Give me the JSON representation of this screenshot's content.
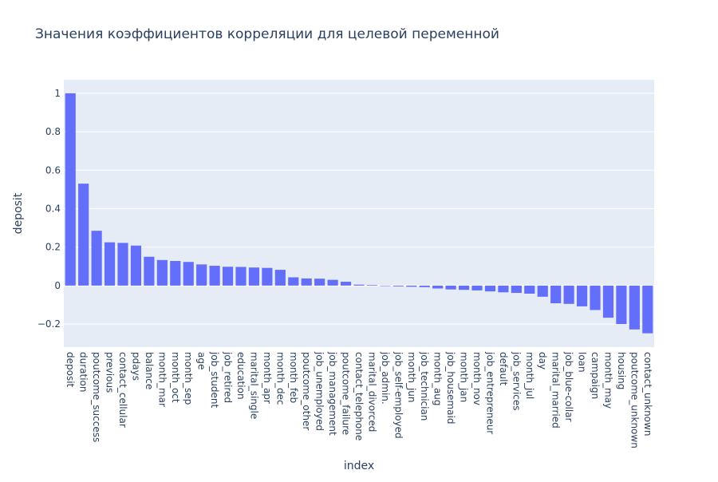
{
  "chart_data": {
    "type": "bar",
    "title": "Значения коэффициентов корреляции для целевой переменной",
    "xlabel": "index",
    "ylabel": "deposit",
    "ylim": [
      -0.32,
      1.07
    ],
    "yticks": [
      -0.2,
      0,
      0.2,
      0.4,
      0.6,
      0.8,
      1
    ],
    "ytick_labels": [
      "−0.2",
      "0",
      "0.2",
      "0.4",
      "0.6",
      "0.8",
      "1"
    ],
    "bar_color": "#636efa",
    "plot_bg": "#e5ecf6",
    "grid": true,
    "categories": [
      "deposit",
      "duration",
      "poutcome_success",
      "previous",
      "contact_cellular",
      "pdays",
      "balance",
      "month_mar",
      "month_oct",
      "month_sep",
      "age",
      "job_student",
      "job_retired",
      "education",
      "marital_single",
      "month_apr",
      "month_dec",
      "month_feb",
      "poutcome_other",
      "job_unemployed",
      "job_management",
      "poutcome_failure",
      "contact_telephone",
      "marital_divorced",
      "job_admin.",
      "job_self-employed",
      "month_jun",
      "job_technician",
      "month_aug",
      "job_housemaid",
      "month_jan",
      "month_nov",
      "job_entrepreneur",
      "default",
      "job_services",
      "month_jul",
      "day",
      "marital_married",
      "job_blue-collar",
      "loan",
      "campaign",
      "month_may",
      "housing",
      "poutcome_unknown",
      "contact_unknown"
    ],
    "values": [
      1.0,
      0.53,
      0.285,
      0.225,
      0.222,
      0.208,
      0.15,
      0.133,
      0.128,
      0.123,
      0.11,
      0.103,
      0.098,
      0.097,
      0.094,
      0.092,
      0.082,
      0.043,
      0.037,
      0.036,
      0.03,
      0.02,
      0.005,
      0.003,
      -0.002,
      -0.004,
      -0.006,
      -0.008,
      -0.015,
      -0.02,
      -0.022,
      -0.025,
      -0.03,
      -0.035,
      -0.038,
      -0.042,
      -0.058,
      -0.092,
      -0.095,
      -0.108,
      -0.127,
      -0.167,
      -0.2,
      -0.228,
      -0.248
    ]
  }
}
